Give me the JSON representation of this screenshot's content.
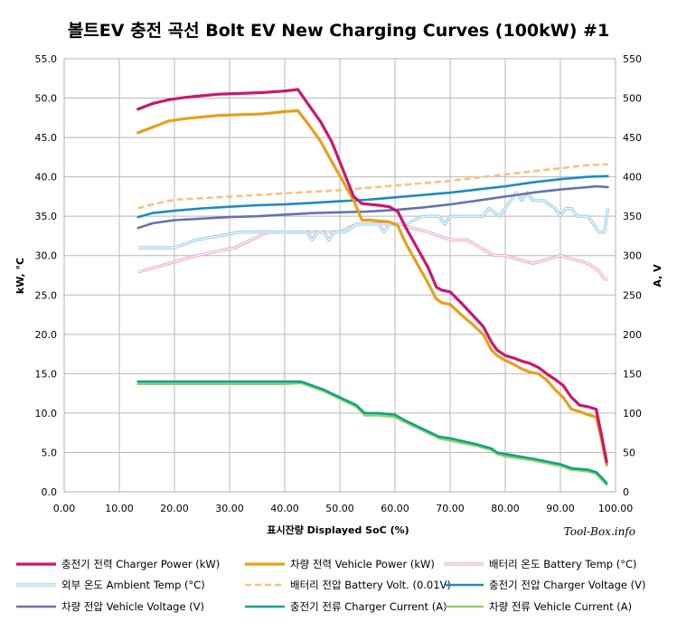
{
  "chart_data": {
    "type": "line",
    "title": "볼트EV 충전 곡선  Bolt EV New Charging Curves (100kW) #1",
    "xlabel": "표시잔량 Displayed SoC (%)",
    "ylabel_left": "kW, °C",
    "ylabel_right": "A, V",
    "xlim": [
      0,
      100
    ],
    "ylim_left": [
      0,
      55
    ],
    "ylim_right": [
      0,
      550
    ],
    "x_ticks": [
      "0.00",
      "10.00",
      "20.00",
      "30.00",
      "40.00",
      "50.00",
      "60.00",
      "70.00",
      "80.00",
      "90.00",
      "100.00"
    ],
    "y_ticks_left": [
      "0.0",
      "5.0",
      "10.0",
      "15.0",
      "20.0",
      "25.0",
      "30.0",
      "35.0",
      "40.0",
      "45.0",
      "50.0",
      "55.0"
    ],
    "y_ticks_right": [
      "0",
      "50",
      "100",
      "150",
      "200",
      "250",
      "300",
      "350",
      "400",
      "450",
      "500",
      "550"
    ],
    "grid": true,
    "legend_position": "bottom",
    "credit": "Tool-Box.info",
    "series": [
      {
        "name": "충전기 전력 Charger Power (kW)",
        "axis": "left",
        "color": "#c8186e",
        "width": 3.2,
        "style": "solid",
        "x": [
          13.4,
          16,
          19,
          22,
          25,
          28,
          32,
          36,
          40,
          42.4,
          44.5,
          46.5,
          48.5,
          50.5,
          52.5,
          54,
          55.5,
          57,
          59,
          60.5,
          62,
          64,
          66,
          67.5,
          68.5,
          70,
          72,
          74,
          76,
          77.5,
          78.5,
          80,
          81.5,
          83,
          84.5,
          86,
          87.5,
          89,
          90.5,
          92,
          93.5,
          95,
          96.5,
          97.5,
          98.4
        ],
        "y": [
          48.6,
          49.3,
          49.8,
          50.1,
          50.3,
          50.5,
          50.6,
          50.7,
          50.9,
          51.1,
          49.0,
          47.0,
          44.5,
          41.0,
          37.5,
          36.6,
          36.5,
          36.4,
          36.2,
          35.6,
          33.5,
          31.0,
          28.5,
          26.0,
          25.6,
          25.4,
          24.0,
          22.5,
          21.0,
          19.0,
          18.0,
          17.3,
          17.0,
          16.6,
          16.3,
          15.8,
          15.0,
          14.3,
          13.5,
          12.0,
          11.0,
          10.8,
          10.5,
          7.0,
          3.8
        ]
      },
      {
        "name": "차량 전력 Vehicle Power (kW)",
        "axis": "left",
        "color": "#e3a21a",
        "width": 3.2,
        "style": "solid",
        "x": [
          13.4,
          16,
          19,
          22,
          25,
          28,
          32,
          36,
          40,
          42.4,
          44.5,
          46.5,
          48.5,
          50.5,
          52.5,
          54,
          55.5,
          57,
          59,
          60.5,
          62,
          64,
          66,
          67.5,
          68.5,
          70,
          72,
          74,
          76,
          77.5,
          78.5,
          80,
          81.5,
          83,
          84.5,
          86,
          87.5,
          89,
          90.5,
          92,
          93.5,
          95,
          96.5,
          97.5,
          98.4
        ],
        "y": [
          45.6,
          46.3,
          47.1,
          47.4,
          47.6,
          47.8,
          47.9,
          48.0,
          48.3,
          48.4,
          46.5,
          44.5,
          42.0,
          39.5,
          37.0,
          34.5,
          34.5,
          34.4,
          34.3,
          33.8,
          31.5,
          29.0,
          26.5,
          24.5,
          24.0,
          23.8,
          22.5,
          21.3,
          20.0,
          18.0,
          17.3,
          16.7,
          16.2,
          15.6,
          15.2,
          15.0,
          14.2,
          13.0,
          12.0,
          10.5,
          10.2,
          9.8,
          9.5,
          6.5,
          3.4
        ]
      },
      {
        "name": "배터리 온도 Battery Temp (°C)",
        "axis": "left",
        "color": "#f0a0c8",
        "width": 2,
        "style": "double",
        "x": [
          13.4,
          19,
          24,
          31,
          37,
          43,
          47,
          50,
          53,
          58,
          61,
          63,
          66,
          70,
          73,
          78,
          80,
          85,
          90,
          95,
          97,
          98,
          98.6
        ],
        "y": [
          27.9,
          29.0,
          30.0,
          31.0,
          33.0,
          33.0,
          33.0,
          33.0,
          34.0,
          34.0,
          34.0,
          33.5,
          33.0,
          32.0,
          32.0,
          30.0,
          30.0,
          29.0,
          30.0,
          29.0,
          28.0,
          27.0,
          27.0
        ]
      },
      {
        "name": "외부 온도 Ambient Temp (°C)",
        "axis": "left",
        "color": "#90c8e6",
        "width": 2,
        "style": "double",
        "x": [
          13.4,
          20,
          24,
          32,
          40,
          44,
          45,
          46,
          47,
          48,
          49,
          50,
          51,
          53,
          55,
          57,
          58,
          59,
          60,
          62,
          65,
          68,
          69,
          70,
          72,
          75,
          76,
          77,
          79,
          80,
          81,
          82,
          83,
          84,
          85,
          87,
          89,
          90,
          91,
          92,
          93,
          94,
          95,
          96,
          97,
          98,
          98.6
        ],
        "y": [
          31.0,
          31.0,
          32.0,
          33.0,
          33.0,
          33.0,
          32.0,
          33.0,
          33.0,
          32.0,
          33.0,
          33.0,
          33.0,
          34.0,
          34.0,
          34.0,
          33.0,
          34.0,
          34.0,
          34.0,
          35.0,
          35.0,
          34.0,
          35.0,
          35.0,
          35.0,
          35.0,
          36.0,
          35.0,
          36.0,
          37.0,
          38.0,
          37.0,
          38.0,
          37.0,
          37.0,
          36.0,
          35.0,
          36.0,
          36.0,
          35.0,
          35.0,
          35.0,
          34.0,
          33.0,
          33.0,
          36.0
        ]
      },
      {
        "name": "배터리 전압 Battery Volt. (0.01V)",
        "axis": "left",
        "color": "#f7c27c",
        "width": 2.6,
        "style": "dashed",
        "x": [
          13.4,
          16,
          20,
          25,
          30,
          35,
          40,
          45,
          50,
          55,
          60,
          65,
          70,
          75,
          80,
          85,
          90,
          95,
          98.6
        ],
        "y": [
          36.0,
          36.5,
          37.1,
          37.3,
          37.5,
          37.7,
          37.9,
          38.1,
          38.3,
          38.6,
          38.9,
          39.2,
          39.5,
          39.9,
          40.3,
          40.7,
          41.1,
          41.5,
          41.6
        ]
      },
      {
        "name": "충전기 전압 Charger Voltage (V)",
        "axis": "left",
        "color": "#1c8cbe",
        "width": 2.6,
        "style": "solid",
        "x": [
          13.4,
          16,
          20,
          25,
          30,
          35,
          40,
          45,
          50,
          55,
          60,
          65,
          70,
          75,
          80,
          85,
          90,
          95,
          98.6
        ],
        "y": [
          34.9,
          35.4,
          35.7,
          36.0,
          36.2,
          36.4,
          36.5,
          36.7,
          36.9,
          37.1,
          37.4,
          37.7,
          38.0,
          38.4,
          38.8,
          39.3,
          39.7,
          40.0,
          40.1
        ]
      },
      {
        "name": "차량 전압 Vehicle Voltage (V)",
        "axis": "left",
        "color": "#6672ae",
        "width": 2.6,
        "style": "solid",
        "x": [
          13.4,
          16,
          20,
          25,
          30,
          35,
          40,
          45,
          50,
          55,
          60,
          65,
          70,
          75,
          80,
          85,
          90,
          95,
          96.5,
          98.6
        ],
        "y": [
          33.5,
          34.1,
          34.5,
          34.7,
          34.9,
          35.0,
          35.2,
          35.4,
          35.5,
          35.6,
          35.8,
          36.1,
          36.5,
          37.0,
          37.5,
          38.0,
          38.4,
          38.7,
          38.8,
          38.7
        ]
      },
      {
        "name": "충전기 전류 Charger Current (A)",
        "axis": "left",
        "color": "#11a08a",
        "width": 2.6,
        "style": "solid",
        "x": [
          13.4,
          20,
          30,
          40,
          43,
          47,
          50,
          53,
          54.5,
          57,
          60,
          62,
          65,
          68,
          70,
          75,
          77.5,
          78.5,
          80,
          85,
          90,
          92,
          95,
          96.5,
          97.5,
          98.4
        ],
        "y": [
          14.0,
          14.0,
          14.0,
          14.0,
          14.0,
          13.0,
          12.0,
          11.0,
          10.0,
          10.0,
          9.8,
          9.0,
          8.0,
          7.0,
          6.8,
          6.0,
          5.5,
          5.0,
          4.8,
          4.2,
          3.5,
          3.0,
          2.8,
          2.5,
          1.8,
          1.1
        ]
      },
      {
        "name": "차량 전류 Vehicle Current (A)",
        "axis": "left",
        "color": "#8ed26e",
        "width": 2.6,
        "style": "solid",
        "x": [
          13.4,
          20,
          30,
          40,
          43,
          47,
          50,
          53,
          54.5,
          57,
          60,
          62,
          65,
          68,
          70,
          75,
          77.5,
          78.5,
          80,
          85,
          90,
          92,
          95,
          96.5,
          97.5,
          98.4
        ],
        "y": [
          13.7,
          13.7,
          13.7,
          13.7,
          13.8,
          12.8,
          11.8,
          10.8,
          9.7,
          9.7,
          9.5,
          8.8,
          7.8,
          6.8,
          6.5,
          5.8,
          5.3,
          4.8,
          4.5,
          4.0,
          3.3,
          2.8,
          2.6,
          2.3,
          1.5,
          0.9
        ]
      }
    ]
  }
}
